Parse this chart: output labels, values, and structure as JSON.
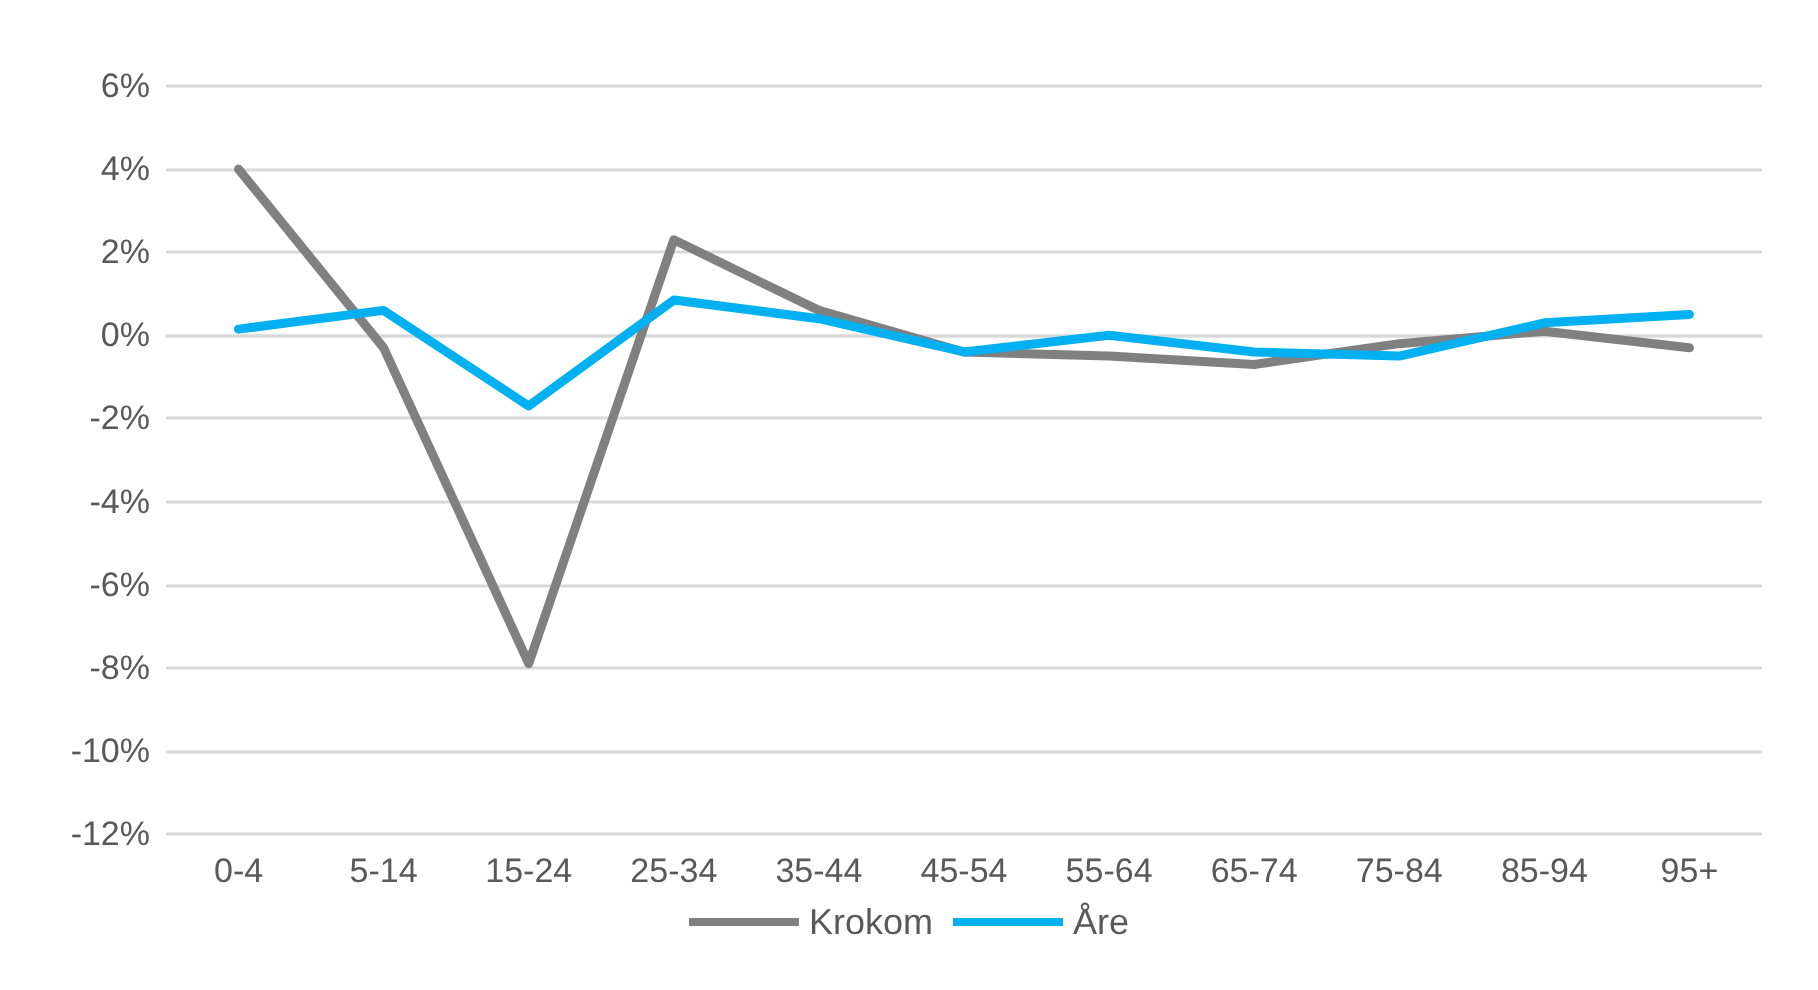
{
  "chart_data": {
    "type": "line",
    "categories": [
      "0-4",
      "5-14",
      "15-24",
      "25-34",
      "35-44",
      "45-54",
      "55-64",
      "65-74",
      "75-84",
      "85-94",
      "95+"
    ],
    "series": [
      {
        "name": "Krokom",
        "color": "#808080",
        "values": [
          4.0,
          -0.3,
          -7.9,
          2.3,
          0.6,
          -0.4,
          -0.5,
          -0.7,
          -0.2,
          0.1,
          -0.3
        ]
      },
      {
        "name": "Åre",
        "color": "#00b0f0",
        "values": [
          0.15,
          0.6,
          -1.7,
          0.85,
          0.4,
          -0.4,
          0.0,
          -0.4,
          -0.5,
          0.3,
          0.5
        ]
      }
    ],
    "ylim": [
      -12,
      6
    ],
    "yticks": [
      {
        "value": -12,
        "label": "-12%"
      },
      {
        "value": -10,
        "label": "-10%"
      },
      {
        "value": -8,
        "label": "-8%"
      },
      {
        "value": -6,
        "label": "-6%"
      },
      {
        "value": -4,
        "label": "-4%"
      },
      {
        "value": -2,
        "label": "-2%"
      },
      {
        "value": 0,
        "label": "0%"
      },
      {
        "value": 2,
        "label": "2%"
      },
      {
        "value": 4,
        "label": "4%"
      },
      {
        "value": 6,
        "label": "6%"
      }
    ],
    "grid": "y",
    "legend": "bottom",
    "marker": "none",
    "line_style": "solid"
  }
}
